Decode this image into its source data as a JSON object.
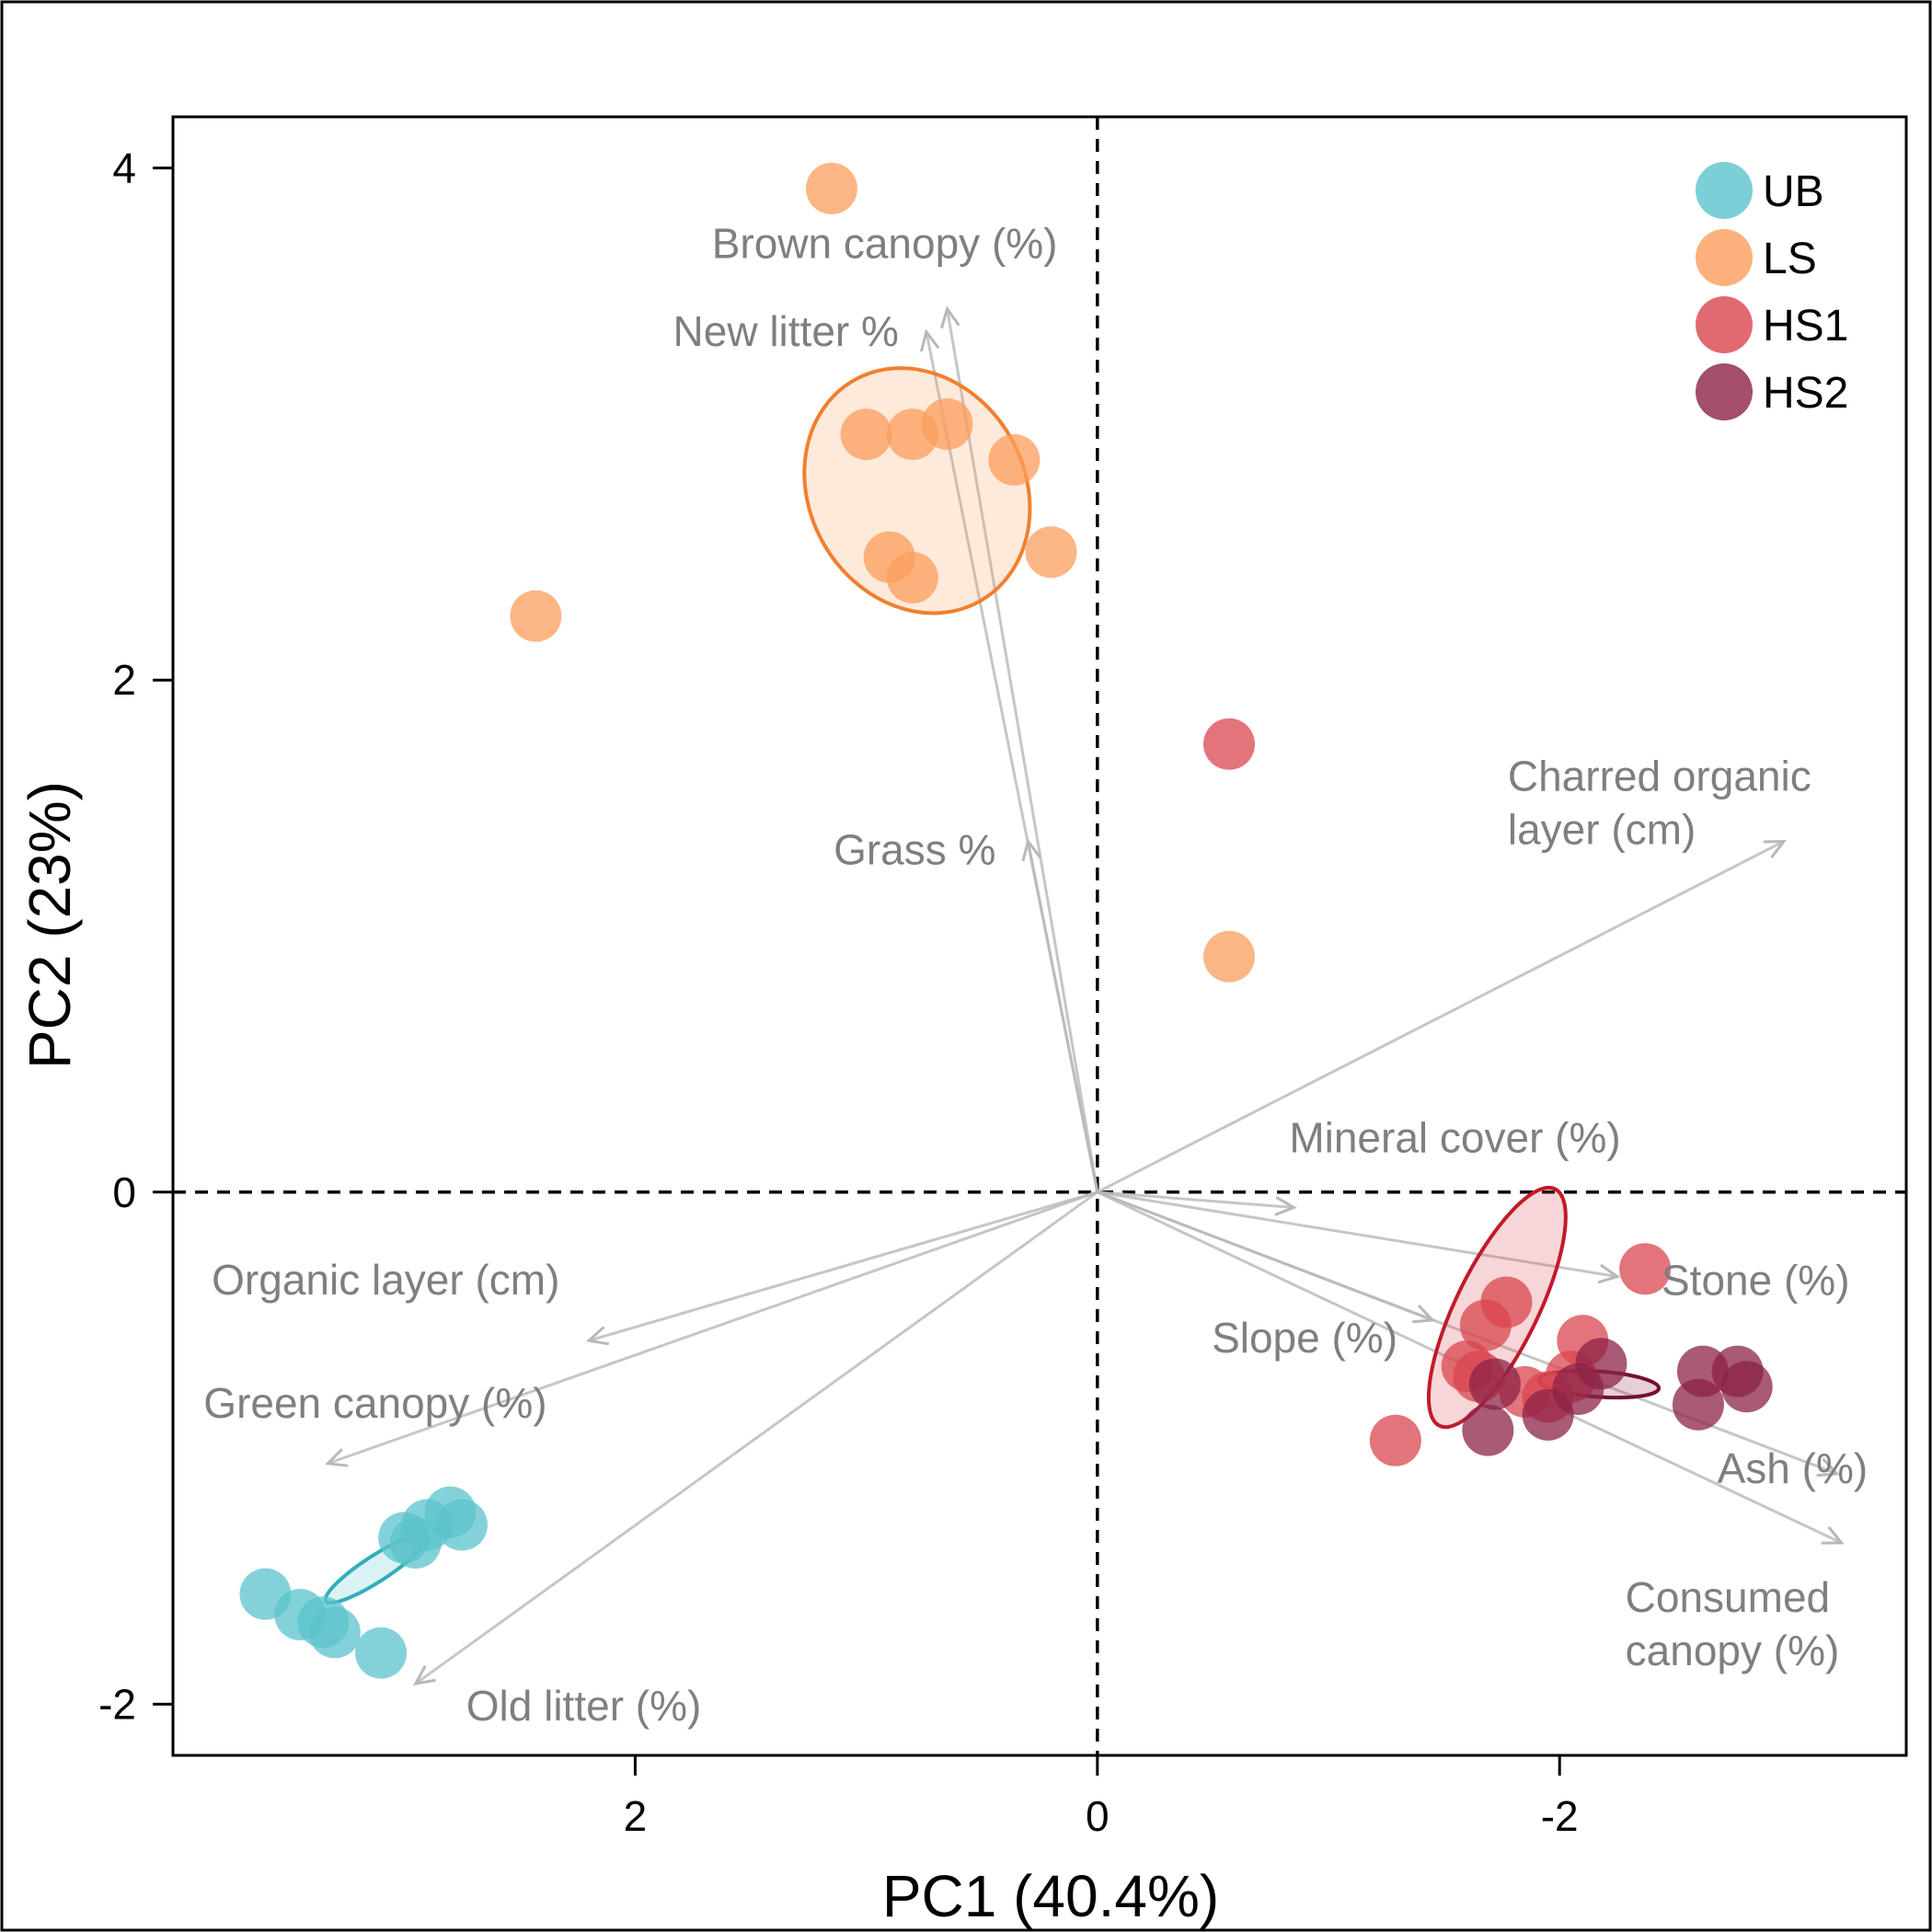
{
  "chart_data": {
    "type": "scatter",
    "subtype": "pca-biplot",
    "title": "",
    "xlabel": "PC1 (40.4%)",
    "ylabel": "PC2 (23%)",
    "x_reversed": true,
    "xlim": [
      4.0,
      -3.5
    ],
    "ylim": [
      -2.2,
      4.2
    ],
    "x_ticks": [
      2,
      0,
      -2
    ],
    "x_tick_labels": [
      "2",
      "0",
      "-2"
    ],
    "y_ticks": [
      -2,
      0,
      2,
      4
    ],
    "y_tick_labels": [
      "-2",
      "0",
      "2",
      "4"
    ],
    "zero_lines": true,
    "legend_position": "top-right",
    "groups": [
      {
        "name": "UB",
        "color": "#5bc3cc",
        "ellipse_color": "#31aebb",
        "points": [
          [
            3.6,
            -1.57
          ],
          [
            3.45,
            -1.65
          ],
          [
            3.35,
            -1.68
          ],
          [
            3.3,
            -1.72
          ],
          [
            3.1,
            -1.8
          ],
          [
            3.0,
            -1.35
          ],
          [
            2.95,
            -1.37
          ],
          [
            2.9,
            -1.3
          ],
          [
            2.8,
            -1.25
          ],
          [
            2.75,
            -1.3
          ]
        ],
        "ellipse": {
          "cx": 3.12,
          "cy": -1.47,
          "rx": 0.26,
          "ry": 0.05,
          "angle": 33
        }
      },
      {
        "name": "LS",
        "color": "#fb9e5c",
        "ellipse_color": "#f27f2e",
        "points": [
          [
            1.15,
            3.92
          ],
          [
            2.43,
            2.25
          ],
          [
            1.0,
            2.96
          ],
          [
            0.8,
            2.96
          ],
          [
            0.65,
            3.0
          ],
          [
            0.36,
            2.86
          ],
          [
            0.9,
            2.48
          ],
          [
            0.8,
            2.4
          ],
          [
            0.2,
            2.5
          ],
          [
            -0.57,
            0.92
          ]
        ],
        "ellipse": {
          "cx": 0.78,
          "cy": 2.74,
          "rx": 0.55,
          "ry": 0.42,
          "angle": -60
        }
      },
      {
        "name": "HS1",
        "color": "#d9454f",
        "ellipse_color": "#c21a2a",
        "points": [
          [
            -0.57,
            1.75
          ],
          [
            -2.37,
            -0.3
          ],
          [
            -1.77,
            -0.43
          ],
          [
            -1.68,
            -0.52
          ],
          [
            -2.1,
            -0.58
          ],
          [
            -1.6,
            -0.68
          ],
          [
            -1.65,
            -0.72
          ],
          [
            -2.05,
            -0.72
          ],
          [
            -1.85,
            -0.78
          ],
          [
            -1.95,
            -0.8
          ],
          [
            -1.29,
            -0.97
          ]
        ],
        "ellipse": {
          "cx": -1.73,
          "cy": -0.45,
          "rx": 0.57,
          "ry": 0.16,
          "angle": 64
        }
      },
      {
        "name": "HS2",
        "color": "#8c2347",
        "ellipse_color": "#74102e",
        "points": [
          [
            -2.18,
            -0.67
          ],
          [
            -2.62,
            -0.7
          ],
          [
            -2.77,
            -0.7
          ],
          [
            -1.72,
            -0.75
          ],
          [
            -2.81,
            -0.76
          ],
          [
            -2.08,
            -0.77
          ],
          [
            -2.6,
            -0.83
          ],
          [
            -1.95,
            -0.87
          ],
          [
            -1.69,
            -0.93
          ]
        ],
        "ellipse": {
          "cx": -2.17,
          "cy": -0.75,
          "rx": 0.26,
          "ry": 0.05,
          "angle": -4
        }
      }
    ],
    "loadings": [
      {
        "label": "Brown canopy (%)",
        "tip": [
          0.65,
          3.45
        ],
        "label_lines": [
          "Brown canopy (%)"
        ],
        "anchor": "end"
      },
      {
        "label": "New litter %",
        "tip": [
          0.74,
          3.36
        ],
        "label_lines": [
          "New litter %"
        ],
        "anchor": "end"
      },
      {
        "label": "Grass %",
        "tip": [
          0.3,
          1.37
        ],
        "label_lines": [
          "Grass %"
        ],
        "anchor": "end"
      },
      {
        "label": "Charred organic layer (cm)",
        "tip": [
          -2.97,
          1.37
        ],
        "label_lines": [
          "Charred organic",
          "layer (cm)"
        ],
        "anchor": "start"
      },
      {
        "label": "Mineral cover (%)",
        "tip": [
          -0.85,
          -0.06
        ],
        "label_lines": [
          "Mineral cover (%)"
        ],
        "anchor": "start"
      },
      {
        "label": "Stone (%)",
        "tip": [
          -2.25,
          -0.33
        ],
        "label_lines": [
          "Stone (%)"
        ],
        "anchor": "start"
      },
      {
        "label": "Slope (%)",
        "tip": [
          -1.45,
          -0.5
        ],
        "label_lines": [
          "Slope (%)"
        ],
        "anchor": "end"
      },
      {
        "label": "Ash (%)",
        "tip": [
          -3.2,
          -1.1
        ],
        "label_lines": [
          "Ash (%)"
        ],
        "anchor": "start"
      },
      {
        "label": "Consumed canopy (%)",
        "tip": [
          -3.22,
          -1.37
        ],
        "label_lines": [
          "Consumed",
          "canopy (%)"
        ],
        "anchor": "start"
      },
      {
        "label": "Organic layer (cm)",
        "tip": [
          2.2,
          -0.58
        ],
        "label_lines": [
          "Organic layer (cm)"
        ],
        "anchor": "start"
      },
      {
        "label": "Green canopy (%)",
        "tip": [
          3.33,
          -1.06
        ],
        "label_lines": [
          "Green canopy (%)"
        ],
        "anchor": "start"
      },
      {
        "label": "Old litter (%)",
        "tip": [
          2.95,
          -1.92
        ],
        "label_lines": [
          "Old litter (%)"
        ],
        "anchor": "start"
      }
    ]
  }
}
